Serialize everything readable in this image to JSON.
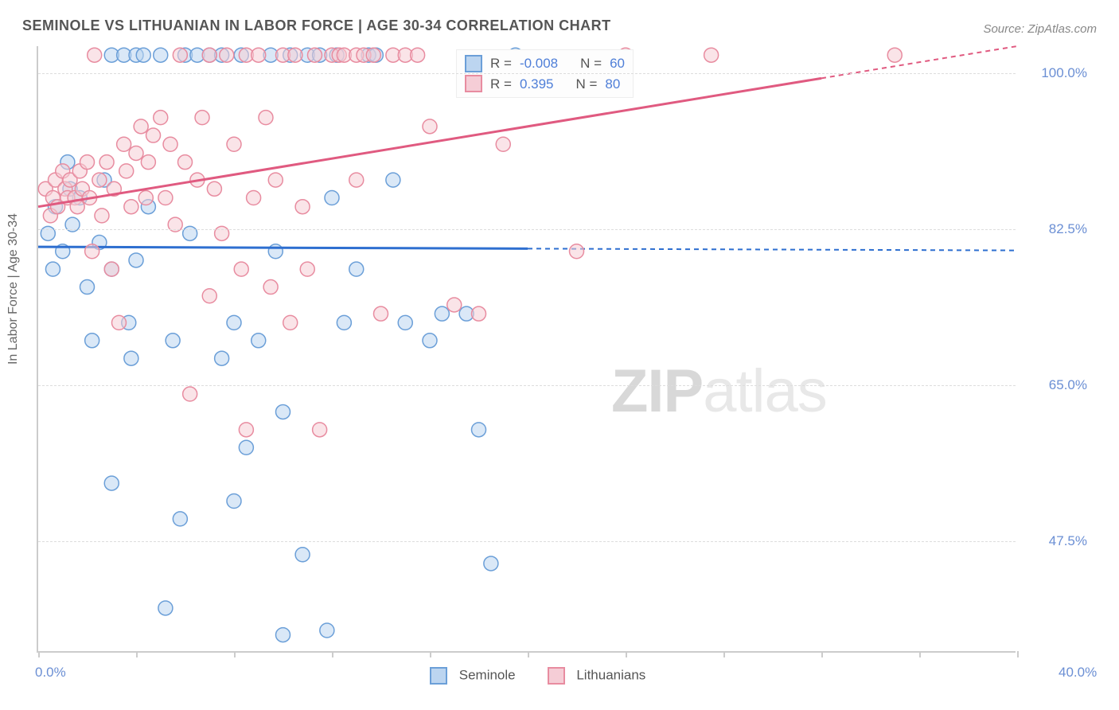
{
  "title": "SEMINOLE VS LITHUANIAN IN LABOR FORCE | AGE 30-34 CORRELATION CHART",
  "source": "Source: ZipAtlas.com",
  "y_axis_title": "In Labor Force | Age 30-34",
  "watermark_a": "ZIP",
  "watermark_b": "atlas",
  "chart": {
    "type": "scatter-correlation",
    "background_color": "#ffffff",
    "grid_color": "#dddddd",
    "axis_color": "#cccccc",
    "tick_label_color": "#6b8fd4",
    "tick_label_fontsize": 17,
    "title_color": "#555555",
    "title_fontsize": 18,
    "x_min": 0.0,
    "x_max": 40.0,
    "x_min_label": "0.0%",
    "x_max_label": "40.0%",
    "x_ticks": [
      0,
      4,
      8,
      12,
      16,
      20,
      24,
      28,
      32,
      36,
      40
    ],
    "y_min": 35.0,
    "y_max": 103.0,
    "y_gridlines": [
      47.5,
      65.0,
      82.5,
      100.0
    ],
    "y_labels": [
      "47.5%",
      "65.0%",
      "82.5%",
      "100.0%"
    ],
    "marker_radius": 9,
    "marker_opacity": 0.55,
    "series": [
      {
        "name": "Seminole",
        "color_fill": "#bcd5f0",
        "color_stroke": "#6b9fd8",
        "trend_color": "#2e6fd0",
        "trend_y_start": 80.5,
        "trend_y_end": 80.1,
        "trend_solid_until_x": 20.0,
        "R": -0.008,
        "N": 60,
        "points": [
          [
            0.4,
            82.0
          ],
          [
            0.6,
            78.0
          ],
          [
            0.7,
            85.0
          ],
          [
            1.0,
            80.0
          ],
          [
            1.2,
            90.0
          ],
          [
            1.3,
            87.0
          ],
          [
            1.4,
            83.0
          ],
          [
            1.7,
            86.0
          ],
          [
            2.0,
            76.0
          ],
          [
            2.2,
            70.0
          ],
          [
            2.5,
            81.0
          ],
          [
            2.7,
            88.0
          ],
          [
            3.0,
            78.0
          ],
          [
            3.0,
            54.0
          ],
          [
            3.0,
            102.0
          ],
          [
            3.5,
            102.0
          ],
          [
            3.7,
            72.0
          ],
          [
            3.8,
            68.0
          ],
          [
            4.0,
            79.0
          ],
          [
            4.0,
            102.0
          ],
          [
            4.3,
            102.0
          ],
          [
            4.5,
            85.0
          ],
          [
            5.0,
            102.0
          ],
          [
            5.2,
            40.0
          ],
          [
            5.5,
            70.0
          ],
          [
            5.8,
            50.0
          ],
          [
            6.0,
            102.0
          ],
          [
            6.2,
            82.0
          ],
          [
            6.5,
            102.0
          ],
          [
            7.0,
            102.0
          ],
          [
            7.5,
            68.0
          ],
          [
            7.5,
            102.0
          ],
          [
            8.0,
            52.0
          ],
          [
            8.0,
            72.0
          ],
          [
            8.3,
            102.0
          ],
          [
            8.5,
            58.0
          ],
          [
            9.0,
            70.0
          ],
          [
            9.5,
            102.0
          ],
          [
            9.7,
            80.0
          ],
          [
            10.0,
            62.0
          ],
          [
            10.0,
            37.0
          ],
          [
            10.3,
            102.0
          ],
          [
            10.8,
            46.0
          ],
          [
            11.0,
            102.0
          ],
          [
            11.5,
            102.0
          ],
          [
            11.8,
            37.5
          ],
          [
            12.0,
            86.0
          ],
          [
            12.2,
            102.0
          ],
          [
            12.5,
            72.0
          ],
          [
            13.0,
            78.0
          ],
          [
            13.5,
            102.0
          ],
          [
            13.8,
            102.0
          ],
          [
            14.5,
            88.0
          ],
          [
            15.0,
            72.0
          ],
          [
            16.0,
            70.0
          ],
          [
            16.5,
            73.0
          ],
          [
            17.5,
            73.0
          ],
          [
            18.0,
            60.0
          ],
          [
            18.5,
            45.0
          ],
          [
            19.5,
            102.0
          ]
        ]
      },
      {
        "name": "Lithuanians",
        "color_fill": "#f5cdd6",
        "color_stroke": "#e88ca0",
        "trend_color": "#e05a80",
        "trend_y_start": 85.0,
        "trend_y_end": 103.0,
        "trend_solid_until_x": 32.0,
        "R": 0.395,
        "N": 80,
        "points": [
          [
            0.3,
            87.0
          ],
          [
            0.5,
            84.0
          ],
          [
            0.6,
            86.0
          ],
          [
            0.7,
            88.0
          ],
          [
            0.8,
            85.0
          ],
          [
            1.0,
            89.0
          ],
          [
            1.1,
            87.0
          ],
          [
            1.2,
            86.0
          ],
          [
            1.3,
            88.0
          ],
          [
            1.5,
            86.0
          ],
          [
            1.6,
            85.0
          ],
          [
            1.7,
            89.0
          ],
          [
            1.8,
            87.0
          ],
          [
            2.0,
            90.0
          ],
          [
            2.1,
            86.0
          ],
          [
            2.2,
            80.0
          ],
          [
            2.3,
            102.0
          ],
          [
            2.5,
            88.0
          ],
          [
            2.6,
            84.0
          ],
          [
            2.8,
            90.0
          ],
          [
            3.0,
            78.0
          ],
          [
            3.1,
            87.0
          ],
          [
            3.3,
            72.0
          ],
          [
            3.5,
            92.0
          ],
          [
            3.6,
            89.0
          ],
          [
            3.8,
            85.0
          ],
          [
            4.0,
            91.0
          ],
          [
            4.2,
            94.0
          ],
          [
            4.4,
            86.0
          ],
          [
            4.5,
            90.0
          ],
          [
            4.7,
            93.0
          ],
          [
            5.0,
            95.0
          ],
          [
            5.2,
            86.0
          ],
          [
            5.4,
            92.0
          ],
          [
            5.6,
            83.0
          ],
          [
            5.8,
            102.0
          ],
          [
            6.0,
            90.0
          ],
          [
            6.2,
            64.0
          ],
          [
            6.5,
            88.0
          ],
          [
            6.7,
            95.0
          ],
          [
            7.0,
            75.0
          ],
          [
            7.0,
            102.0
          ],
          [
            7.2,
            87.0
          ],
          [
            7.5,
            82.0
          ],
          [
            7.7,
            102.0
          ],
          [
            8.0,
            92.0
          ],
          [
            8.3,
            78.0
          ],
          [
            8.5,
            102.0
          ],
          [
            8.5,
            60.0
          ],
          [
            8.8,
            86.0
          ],
          [
            9.0,
            102.0
          ],
          [
            9.3,
            95.0
          ],
          [
            9.5,
            76.0
          ],
          [
            9.7,
            88.0
          ],
          [
            10.0,
            102.0
          ],
          [
            10.3,
            72.0
          ],
          [
            10.5,
            102.0
          ],
          [
            10.8,
            85.0
          ],
          [
            11.0,
            78.0
          ],
          [
            11.3,
            102.0
          ],
          [
            11.5,
            60.0
          ],
          [
            12.0,
            102.0
          ],
          [
            12.3,
            102.0
          ],
          [
            12.5,
            102.0
          ],
          [
            13.0,
            102.0
          ],
          [
            13.0,
            88.0
          ],
          [
            13.3,
            102.0
          ],
          [
            13.7,
            102.0
          ],
          [
            14.0,
            73.0
          ],
          [
            14.5,
            102.0
          ],
          [
            15.0,
            102.0
          ],
          [
            15.5,
            102.0
          ],
          [
            16.0,
            94.0
          ],
          [
            17.0,
            74.0
          ],
          [
            18.0,
            73.0
          ],
          [
            19.0,
            92.0
          ],
          [
            22.0,
            80.0
          ],
          [
            24.0,
            102.0
          ],
          [
            27.5,
            102.0
          ],
          [
            35.0,
            102.0
          ]
        ]
      }
    ],
    "legend": {
      "r_label": "R =",
      "n_label": "N ="
    },
    "bottom_legend": {
      "series_0": "Seminole",
      "series_1": "Lithuanians"
    }
  }
}
